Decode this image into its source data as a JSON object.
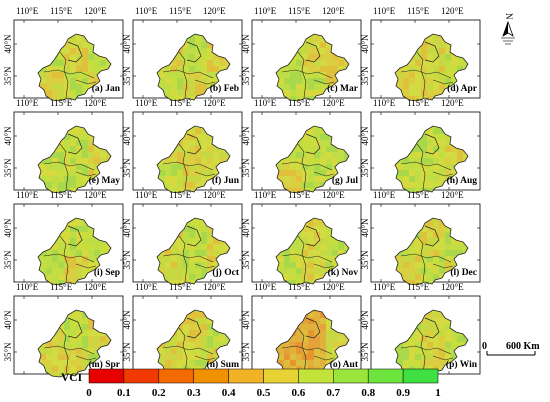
{
  "panels": [
    {
      "label": "(a) Jan",
      "palette": [
        0,
        1,
        0,
        1,
        0,
        1
      ]
    },
    {
      "label": "(b) Feb",
      "palette": [
        1,
        0,
        1,
        0,
        1,
        0
      ]
    },
    {
      "label": "(c) Mar",
      "palette": [
        0,
        1,
        1,
        0,
        0,
        1
      ]
    },
    {
      "label": "(d) Apr",
      "palette": [
        1,
        1,
        0,
        1,
        1,
        0
      ]
    },
    {
      "label": "(e) May",
      "palette": [
        0,
        0,
        1,
        0,
        0,
        1
      ]
    },
    {
      "label": "(f) Jun",
      "palette": [
        1,
        1,
        1,
        0,
        1,
        1
      ]
    },
    {
      "label": "(g) Jul",
      "palette": [
        0,
        0,
        0,
        1,
        0,
        0
      ]
    },
    {
      "label": "(h) Aug",
      "palette": [
        0,
        0,
        1,
        0,
        0,
        1
      ]
    },
    {
      "label": "(i) Sep",
      "palette": [
        0,
        0,
        0,
        0,
        1,
        0
      ]
    },
    {
      "label": "(j) Oct",
      "palette": [
        1,
        0,
        1,
        1,
        0,
        1
      ]
    },
    {
      "label": "(k) Nov",
      "palette": [
        0,
        1,
        0,
        0,
        1,
        0
      ]
    },
    {
      "label": "(l) Dec",
      "palette": [
        0,
        1,
        0,
        1,
        0,
        1
      ]
    },
    {
      "label": "(m) Spr",
      "palette": [
        1,
        0,
        1,
        1,
        1,
        0
      ]
    },
    {
      "label": "(n) Sum",
      "palette": [
        1,
        1,
        0,
        1,
        0,
        1
      ]
    },
    {
      "label": "(o) Aut",
      "palette": [
        2,
        2,
        1,
        2,
        2,
        1
      ]
    },
    {
      "label": "(p) Win",
      "palette": [
        0,
        1,
        0,
        0,
        1,
        0
      ]
    }
  ],
  "axis": {
    "lon_labels": [
      "110°E",
      "115°E",
      "120°E"
    ],
    "lat_labels": [
      "40°N",
      "35°N"
    ]
  },
  "legend": {
    "title": "VCI",
    "ticks": [
      "0",
      "0.1",
      "0.2",
      "0.3",
      "0.4",
      "0.5",
      "0.6",
      "0.7",
      "0.8",
      "0.9",
      "1"
    ],
    "colors": [
      "#e60000",
      "#f23a00",
      "#f36a00",
      "#f29100",
      "#f2b226",
      "#e8d335",
      "#c4e33a",
      "#9ae43c",
      "#6ee43f",
      "#3ee042"
    ]
  },
  "scale_bar": {
    "start": "0",
    "end": "600 Km"
  },
  "north_arrow": {
    "letter": "N"
  },
  "fill_palettes": [
    [
      "#a9d94a",
      "#bfdd45",
      "#c8de3f",
      "#d6da3f"
    ],
    [
      "#c7d843",
      "#d9cf40",
      "#e0c13c",
      "#d3db43"
    ],
    [
      "#e3a33a",
      "#e0b13b",
      "#dcc03d",
      "#e8952f"
    ]
  ]
}
